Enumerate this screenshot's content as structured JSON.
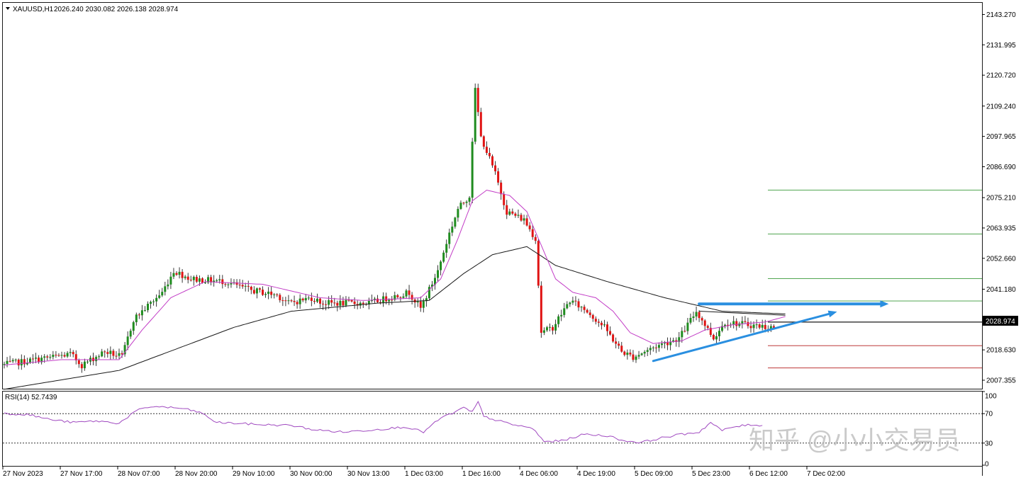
{
  "header": {
    "symbol": "XAUUSD,H1",
    "ohlc": "2026.240 2030.082 2026.138 2028.974"
  },
  "rsi_header": "RSI(14) 52.7439",
  "watermark": "知乎 @小小交易员",
  "current_price_label": "2028.974",
  "colors": {
    "bull": "#1f8c1f",
    "bear": "#e01414",
    "ma_fast": "#c23cc6",
    "ma_slow": "#1a1a1a",
    "rsi": "#a04ac0",
    "arrow": "#2a8fe0",
    "fib_green": "#3a9a3a",
    "fib_red": "#b21a1a"
  },
  "chart_data": [
    {
      "type": "candlestick",
      "symbol": "XAUUSD",
      "timeframe": "H1",
      "y_ticks": [
        "2143.270",
        "2131.995",
        "2120.720",
        "2109.240",
        "2097.965",
        "2086.690",
        "2075.210",
        "2063.935",
        "2052.660",
        "2041.180",
        "2018.630",
        "2007.355"
      ],
      "ylim": [
        2004.2,
        2147.6
      ],
      "x_ticks": [
        "27 Nov 2023",
        "27 Nov 17:00",
        "28 Nov 07:00",
        "28 Nov 20:00",
        "29 Nov 10:00",
        "30 Nov 00:00",
        "30 Nov 13:00",
        "1 Dec 03:00",
        "1 Dec 16:00",
        "4 Dec 06:00",
        "4 Dec 19:00",
        "5 Dec 09:00",
        "5 Dec 23:00",
        "6 Dec 12:00",
        "7 Dec 02:00"
      ],
      "path_points": [
        [
          0,
          2013
        ],
        [
          12,
          2015
        ],
        [
          24,
          2017
        ],
        [
          28,
          2013
        ],
        [
          36,
          2018
        ],
        [
          42,
          2016
        ],
        [
          46,
          2030
        ],
        [
          56,
          2040
        ],
        [
          60,
          2048
        ],
        [
          66,
          2045
        ],
        [
          78,
          2044
        ],
        [
          86,
          2041
        ],
        [
          96,
          2039
        ],
        [
          100,
          2036
        ],
        [
          108,
          2038
        ],
        [
          112,
          2036
        ],
        [
          128,
          2036
        ],
        [
          142,
          2040
        ],
        [
          146,
          2034
        ],
        [
          152,
          2048
        ],
        [
          156,
          2062
        ],
        [
          159,
          2071
        ],
        [
          163,
          2076
        ],
        [
          165,
          2116
        ],
        [
          167,
          2098
        ],
        [
          172,
          2084
        ],
        [
          176,
          2070
        ],
        [
          182,
          2067
        ],
        [
          186,
          2060
        ],
        [
          188,
          2025
        ],
        [
          192,
          2027
        ],
        [
          198,
          2037
        ],
        [
          204,
          2033
        ],
        [
          210,
          2027
        ],
        [
          216,
          2018
        ],
        [
          220,
          2016
        ],
        [
          228,
          2020
        ],
        [
          236,
          2023
        ],
        [
          242,
          2033
        ],
        [
          248,
          2023
        ],
        [
          252,
          2029
        ],
        [
          260,
          2028
        ],
        [
          268,
          2027
        ]
      ],
      "ma_fast": [
        [
          0,
          2013
        ],
        [
          20,
          2015
        ],
        [
          40,
          2015
        ],
        [
          48,
          2026
        ],
        [
          58,
          2038
        ],
        [
          70,
          2044
        ],
        [
          90,
          2043
        ],
        [
          110,
          2038
        ],
        [
          125,
          2037
        ],
        [
          145,
          2038
        ],
        [
          152,
          2045
        ],
        [
          158,
          2060
        ],
        [
          163,
          2074
        ],
        [
          168,
          2078
        ],
        [
          176,
          2076
        ],
        [
          182,
          2070
        ],
        [
          186,
          2060
        ],
        [
          192,
          2045
        ],
        [
          198,
          2040
        ],
        [
          206,
          2038
        ],
        [
          212,
          2033
        ],
        [
          218,
          2025
        ],
        [
          226,
          2021
        ],
        [
          236,
          2022
        ],
        [
          244,
          2026
        ],
        [
          254,
          2028
        ],
        [
          265,
          2029
        ],
        [
          272,
          2031
        ]
      ],
      "ma_slow": [
        [
          0,
          2004
        ],
        [
          40,
          2011
        ],
        [
          60,
          2019
        ],
        [
          80,
          2027
        ],
        [
          100,
          2033
        ],
        [
          130,
          2036
        ],
        [
          148,
          2037
        ],
        [
          160,
          2047
        ],
        [
          170,
          2054
        ],
        [
          182,
          2057
        ],
        [
          192,
          2050
        ],
        [
          210,
          2044
        ],
        [
          230,
          2038
        ],
        [
          250,
          2033
        ],
        [
          272,
          2032
        ]
      ],
      "current_price": 2028.974,
      "fib_levels": [
        {
          "price": 2078.0,
          "color": "green"
        },
        {
          "price": 2061.7,
          "color": "green"
        },
        {
          "price": 2045.1,
          "color": "green"
        },
        {
          "price": 2036.8,
          "color": "green"
        },
        {
          "price": 2028.97,
          "color": "black"
        },
        {
          "price": 2020.2,
          "color": "red"
        },
        {
          "price": 2011.9,
          "color": "red"
        }
      ],
      "arrows": [
        {
          "from": [
            242,
            2035.7
          ],
          "to": [
            308,
            2035.7
          ]
        },
        {
          "from": [
            226,
            2014.5
          ],
          "to": [
            290,
            2032.8
          ]
        }
      ],
      "triangle_top": {
        "from": [
          242,
          2033.0
        ],
        "to": [
          272,
          2031.5
        ]
      }
    },
    {
      "type": "line",
      "name": "RSI(14)",
      "value": 52.7439,
      "y_ticks": [
        "100",
        "70",
        "30",
        "0"
      ],
      "ylim": [
        0,
        100
      ],
      "levels": [
        70,
        30
      ],
      "points": [
        [
          0,
          70
        ],
        [
          8,
          69
        ],
        [
          16,
          62
        ],
        [
          24,
          58
        ],
        [
          32,
          60
        ],
        [
          40,
          57
        ],
        [
          46,
          74
        ],
        [
          52,
          80
        ],
        [
          62,
          77
        ],
        [
          68,
          72
        ],
        [
          74,
          58
        ],
        [
          80,
          57
        ],
        [
          90,
          55
        ],
        [
          100,
          54
        ],
        [
          108,
          48
        ],
        [
          118,
          45
        ],
        [
          128,
          48
        ],
        [
          140,
          52
        ],
        [
          146,
          45
        ],
        [
          152,
          64
        ],
        [
          157,
          72
        ],
        [
          160,
          78
        ],
        [
          163,
          72
        ],
        [
          165,
          86
        ],
        [
          167,
          66
        ],
        [
          176,
          56
        ],
        [
          184,
          50
        ],
        [
          188,
          32
        ],
        [
          194,
          33
        ],
        [
          202,
          42
        ],
        [
          210,
          40
        ],
        [
          216,
          33
        ],
        [
          222,
          31
        ],
        [
          230,
          38
        ],
        [
          236,
          42
        ],
        [
          242,
          45
        ],
        [
          246,
          58
        ],
        [
          250,
          47
        ],
        [
          254,
          52
        ],
        [
          260,
          55
        ],
        [
          264,
          54
        ]
      ]
    }
  ]
}
